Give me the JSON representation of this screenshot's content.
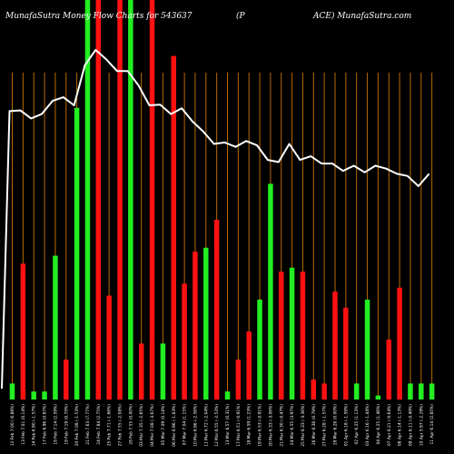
{
  "header": {
    "left": "MunafaSutra  Money Flow Charts for 543637",
    "middle": "(P",
    "right": "ACE) MunafaSutra.com"
  },
  "colors": {
    "background": "#000000",
    "up_bar": "#22ee22",
    "down_bar": "#ff1111",
    "price_line": "#ffffff",
    "grid": "#b96a00"
  },
  "chart_data": {
    "type": "bar",
    "title": "MunafaSutra  Money Flow Charts for 543637 (PACE) MunafaSutra.com",
    "grid": true,
    "ylim": [
      0,
      100
    ],
    "categories": [
      "12 Feb 7.00 (-6.86%)",
      "13 Feb 7.01 (0.14%)",
      "14 Feb 6.90 (-1.57%)",
      "17 Feb 6.96 (0.87%)",
      "18 Feb 7.14 (2.59%)",
      "19 Feb 7.19 (0.70%)",
      "20 Feb 7.08 (-1.53%)",
      "21 Feb 7.63 (7.77%)",
      "24 Feb 7.84 (2.75%)",
      "25 Feb 7.71 (-1.66%)",
      "27 Feb 7.55 (-2.08%)",
      "28 Feb 7.55 (0.00%)",
      "03 Mar 7.35 (-2.65%)",
      "04 Mar 7.08 (-3.67%)",
      "05 Mar 7.09 (0.14%)",
      "06 Mar 6.96 (-1.83%)",
      "07 Mar 7.04 (1.15%)",
      "10 Mar 6.86 (-2.56%)",
      "11 Mar 6.72 (-2.04%)",
      "12 Mar 6.55 (-2.53%)",
      "13 Mar 6.57 (0.31%)",
      "17 Mar 6.51 (-0.91%)",
      "18 Mar 6.59 (1.23%)",
      "19 Mar 6.53 (-0.91%)",
      "20 Mar 6.33 (-3.06%)",
      "21 Mar 6.30 (-0.47%)",
      "24 Mar 6.55 (3.97%)",
      "25 Mar 6.33 (-3.36%)",
      "26 Mar 6.38 (0.79%)",
      "27 Mar 6.28 (-1.57%)",
      "28 Mar 6.28 (0.00%)",
      "01 Apr 6.18 (-1.59%)",
      "02 Apr 6.25 (1.13%)",
      "03 Apr 6.16 (-1.44%)",
      "04 Apr 6.25 (1.46%)",
      "07 Apr 6.21 (-0.64%)",
      "08 Apr 6.14 (-1.13%)",
      "09 Apr 6.11 (-0.49%)",
      "10 Apr 5.97 (-2.29%)",
      "11 Apr 6.14 (2.85%)"
    ],
    "series": [
      {
        "type": "bar",
        "bar_values": [
          4,
          34,
          2,
          2,
          36,
          10,
          73,
          100,
          100,
          26,
          100,
          100,
          14,
          100,
          14,
          86,
          29,
          37,
          38,
          45,
          2,
          10,
          17,
          25,
          54,
          32,
          33,
          32,
          5,
          4,
          27,
          23,
          4,
          25,
          1,
          15,
          28,
          4,
          4,
          4
        ],
        "directions": [
          "up",
          "down",
          "up",
          "up",
          "up",
          "down",
          "up",
          "up",
          "down",
          "down",
          "down",
          "up",
          "down",
          "down",
          "up",
          "down",
          "down",
          "down",
          "up",
          "down",
          "up",
          "down",
          "down",
          "up",
          "up",
          "down",
          "up",
          "down",
          "down",
          "down",
          "down",
          "down",
          "up",
          "up",
          "up",
          "down",
          "down",
          "up",
          "up",
          "up"
        ]
      },
      {
        "type": "line",
        "values": [
          7.0,
          7.01,
          6.9,
          6.96,
          7.14,
          7.19,
          7.08,
          7.63,
          7.84,
          7.71,
          7.55,
          7.55,
          7.35,
          7.08,
          7.09,
          6.96,
          7.04,
          6.86,
          6.72,
          6.55,
          6.57,
          6.51,
          6.59,
          6.53,
          6.33,
          6.3,
          6.55,
          6.33,
          6.38,
          6.28,
          6.28,
          6.18,
          6.25,
          6.16,
          6.25,
          6.21,
          6.14,
          6.11,
          5.97,
          6.14
        ]
      }
    ]
  }
}
